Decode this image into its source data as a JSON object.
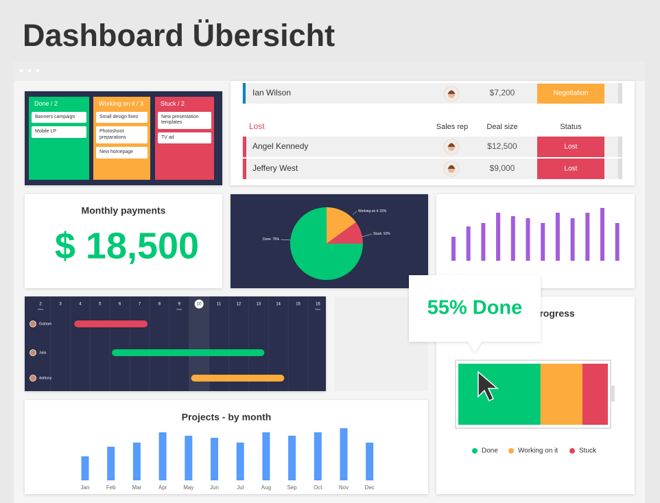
{
  "title": "Dashboard Übersicht",
  "kanban": {
    "columns": [
      {
        "name": "Done / 2",
        "color": "#00c875",
        "cards": [
          "Banners campaign",
          "Mobile LP"
        ]
      },
      {
        "name": "Working on it / 3",
        "color": "#fdab3d",
        "cards": [
          "Small design fixes",
          "Photoshoot preparations",
          "New homepage"
        ]
      },
      {
        "name": "Stuck / 2",
        "color": "#e2445c",
        "cards": [
          "New presentation templates",
          "TV ad"
        ]
      }
    ]
  },
  "deals": {
    "top_row": {
      "name": "Ian Wilson",
      "deal_size": "$7,200",
      "status": "Negotiation",
      "status_color": "#fdab3d"
    },
    "group": "Lost",
    "group_color": "#e2445c",
    "headers": [
      "Sales rep",
      "Deal size",
      "Status"
    ],
    "rows": [
      {
        "name": "Angel Kennedy",
        "deal_size": "$12,500",
        "status": "Lost"
      },
      {
        "name": "Jeffery West",
        "deal_size": "$9,000",
        "status": "Lost"
      }
    ]
  },
  "payments": {
    "title": "Monthly payments",
    "amount": "$ 18,500"
  },
  "chart_data": [
    {
      "type": "pie",
      "categories": [
        "Done",
        "Working on it",
        "Stuck"
      ],
      "values": [
        75,
        15,
        10
      ],
      "value_labels": [
        "75%",
        "15%",
        "10%"
      ],
      "colors": [
        "#00c875",
        "#fdab3d",
        "#e2445c"
      ]
    },
    {
      "type": "bar",
      "values": [
        35,
        50,
        55,
        70,
        65,
        62,
        55,
        70,
        62,
        70,
        77,
        55
      ],
      "color": "#a25ddc",
      "ylim": [
        0,
        80
      ]
    },
    {
      "type": "gantt",
      "xlim": [
        1.2,
        16.4
      ],
      "xticks": [
        2,
        3,
        4,
        5,
        6,
        7,
        8,
        9,
        10,
        11,
        12,
        13,
        14,
        15,
        16
      ],
      "weekday_ticks": [
        {
          "value": 2,
          "label": "Mon"
        },
        {
          "value": 9,
          "label": "Mon"
        },
        {
          "value": 16,
          "label": "Mon"
        }
      ],
      "today": 10,
      "tasks": [
        {
          "name": "Graham",
          "start": 3.7,
          "end": 7.4,
          "color": "#e2445c"
        },
        {
          "name": "Julia",
          "start": 5.6,
          "end": 13.3,
          "color": "#00c875"
        },
        {
          "name": "Anthony",
          "start": 9.6,
          "end": 14.3,
          "color": "#fdab3d"
        }
      ]
    },
    {
      "type": "stacked_bar",
      "title": "Progress",
      "callout": "55% Done",
      "categories": [
        "Done",
        "Working on it",
        "Stuck"
      ],
      "values": [
        55,
        28,
        17
      ],
      "colors": [
        "#00c875",
        "#fdab3d",
        "#e2445c"
      ],
      "xlim": [
        0,
        100
      ]
    },
    {
      "type": "bar",
      "title": "Projects - by month",
      "categories": [
        "Jan",
        "Feb",
        "Mar",
        "Apr",
        "May",
        "Jun",
        "Jul",
        "Aug",
        "Sep",
        "Oct",
        "Nov",
        "Dec"
      ],
      "values": [
        35,
        49,
        55,
        70,
        65,
        62,
        55,
        70,
        65,
        70,
        76,
        55
      ],
      "color": "#579bfc",
      "ylim": [
        0,
        80
      ]
    }
  ]
}
